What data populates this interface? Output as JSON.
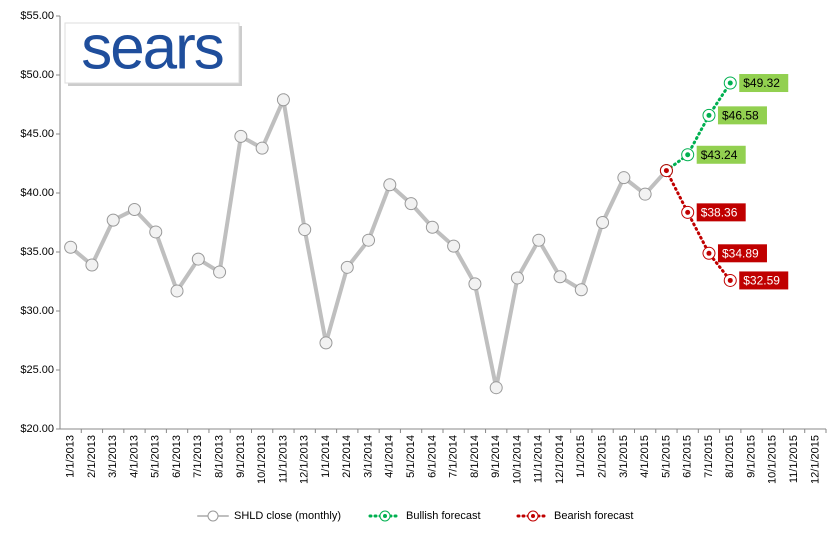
{
  "logo": "sears",
  "chart_data": {
    "type": "line",
    "categories": [
      "1/1/2013",
      "2/1/2013",
      "3/1/2013",
      "4/1/2013",
      "5/1/2013",
      "6/1/2013",
      "7/1/2013",
      "8/1/2013",
      "9/1/2013",
      "10/1/2013",
      "11/1/2013",
      "12/1/2013",
      "1/1/2014",
      "2/1/2014",
      "3/1/2014",
      "4/1/2014",
      "5/1/2014",
      "6/1/2014",
      "7/1/2014",
      "8/1/2014",
      "9/1/2014",
      "10/1/2014",
      "11/1/2014",
      "12/1/2014",
      "1/1/2015",
      "2/1/2015",
      "3/1/2015",
      "4/1/2015",
      "5/1/2015",
      "6/1/2015",
      "7/1/2015",
      "8/1/2015",
      "9/1/2015",
      "10/1/2015",
      "11/1/2015",
      "12/1/2015"
    ],
    "series": [
      {
        "name": "SHLD close (monthly)",
        "color": "#bfbfbf",
        "values": [
          35.4,
          33.9,
          37.7,
          38.6,
          36.7,
          31.7,
          34.4,
          33.3,
          44.8,
          43.8,
          47.9,
          36.9,
          27.3,
          33.7,
          36.0,
          40.7,
          39.1,
          37.1,
          35.5,
          32.3,
          23.5,
          32.8,
          36.0,
          32.9,
          31.8,
          37.5,
          41.3,
          39.9,
          41.9,
          null,
          null,
          null,
          null,
          null,
          null,
          null
        ]
      },
      {
        "name": "Bullish forecast",
        "color": "#00b050",
        "label_color": "#92d050",
        "label_text_color": "#000000",
        "values": [
          null,
          null,
          null,
          null,
          null,
          null,
          null,
          null,
          null,
          null,
          null,
          null,
          null,
          null,
          null,
          null,
          null,
          null,
          null,
          null,
          null,
          null,
          null,
          null,
          null,
          null,
          null,
          null,
          41.9,
          43.24,
          46.58,
          49.32,
          null,
          null,
          null,
          null
        ],
        "value_labels": [
          null,
          null,
          null,
          null,
          null,
          null,
          null,
          null,
          null,
          null,
          null,
          null,
          null,
          null,
          null,
          null,
          null,
          null,
          null,
          null,
          null,
          null,
          null,
          null,
          null,
          null,
          null,
          null,
          null,
          "$43.24",
          "$46.58",
          "$49.32",
          null,
          null,
          null,
          null
        ]
      },
      {
        "name": "Bearish forecast",
        "color": "#c00000",
        "label_color": "#c00000",
        "label_text_color": "#ffffff",
        "values": [
          null,
          null,
          null,
          null,
          null,
          null,
          null,
          null,
          null,
          null,
          null,
          null,
          null,
          null,
          null,
          null,
          null,
          null,
          null,
          null,
          null,
          null,
          null,
          null,
          null,
          null,
          null,
          null,
          41.9,
          38.36,
          34.89,
          32.59,
          null,
          null,
          null,
          null
        ],
        "value_labels": [
          null,
          null,
          null,
          null,
          null,
          null,
          null,
          null,
          null,
          null,
          null,
          null,
          null,
          null,
          null,
          null,
          null,
          null,
          null,
          null,
          null,
          null,
          null,
          null,
          null,
          null,
          null,
          null,
          null,
          "$38.36",
          "$34.89",
          "$32.59",
          null,
          null,
          null,
          null
        ]
      }
    ],
    "ylim": [
      20,
      55
    ],
    "yticks": [
      {
        "value": 20,
        "label": "$20.00"
      },
      {
        "value": 25,
        "label": "$25.00"
      },
      {
        "value": 30,
        "label": "$30.00"
      },
      {
        "value": 35,
        "label": "$35.00"
      },
      {
        "value": 40,
        "label": "$40.00"
      },
      {
        "value": 45,
        "label": "$45.00"
      },
      {
        "value": 50,
        "label": "$50.00"
      },
      {
        "value": 55,
        "label": "$55.00"
      }
    ],
    "grid": false,
    "legend": "bottom"
  }
}
